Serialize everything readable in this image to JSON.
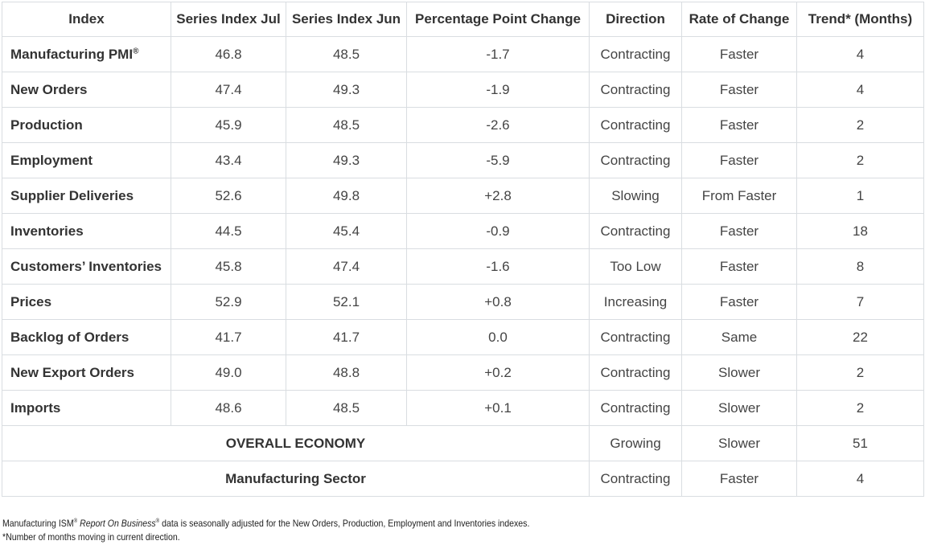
{
  "table": {
    "headers": [
      "Index",
      "Series Index Jul",
      "Series Index Jun",
      "Percentage Point Change",
      "Direction",
      "Rate of Change",
      "Trend* (Months)"
    ],
    "rows": [
      {
        "index": "Manufacturing PMI",
        "sup": "®",
        "jul": "46.8",
        "jun": "48.5",
        "change": "-1.7",
        "direction": "Contracting",
        "rate": "Faster",
        "trend": "4"
      },
      {
        "index": "New Orders",
        "jul": "47.4",
        "jun": "49.3",
        "change": "-1.9",
        "direction": "Contracting",
        "rate": "Faster",
        "trend": "4"
      },
      {
        "index": "Production",
        "jul": "45.9",
        "jun": "48.5",
        "change": "-2.6",
        "direction": "Contracting",
        "rate": "Faster",
        "trend": "2"
      },
      {
        "index": "Employment",
        "jul": "43.4",
        "jun": "49.3",
        "change": "-5.9",
        "direction": "Contracting",
        "rate": "Faster",
        "trend": "2"
      },
      {
        "index": "Supplier Deliveries",
        "jul": "52.6",
        "jun": "49.8",
        "change": "+2.8",
        "direction": "Slowing",
        "rate": "From Faster",
        "trend": "1"
      },
      {
        "index": "Inventories",
        "jul": "44.5",
        "jun": "45.4",
        "change": "-0.9",
        "direction": "Contracting",
        "rate": "Faster",
        "trend": "18"
      },
      {
        "index": "Customers’ Inventories",
        "jul": "45.8",
        "jun": "47.4",
        "change": "-1.6",
        "direction": "Too Low",
        "rate": "Faster",
        "trend": "8"
      },
      {
        "index": "Prices",
        "jul": "52.9",
        "jun": "52.1",
        "change": "+0.8",
        "direction": "Increasing",
        "rate": "Faster",
        "trend": "7"
      },
      {
        "index": "Backlog of Orders",
        "jul": "41.7",
        "jun": "41.7",
        "change": "0.0",
        "direction": "Contracting",
        "rate": "Same",
        "trend": "22"
      },
      {
        "index": "New Export Orders",
        "jul": "49.0",
        "jun": "48.8",
        "change": "+0.2",
        "direction": "Contracting",
        "rate": "Slower",
        "trend": "2"
      },
      {
        "index": "Imports",
        "jul": "48.6",
        "jun": "48.5",
        "change": "+0.1",
        "direction": "Contracting",
        "rate": "Slower",
        "trend": "2"
      }
    ],
    "summary_rows": [
      {
        "label": "OVERALL ECONOMY",
        "direction": "Growing",
        "rate": "Slower",
        "trend": "51"
      },
      {
        "label": "Manufacturing Sector",
        "direction": "Contracting",
        "rate": "Faster",
        "trend": "4"
      }
    ]
  },
  "footer": {
    "line1_a": "Manufacturing ISM",
    "line1_sup1": "®",
    "line1_b": "Report On Business",
    "line1_sup2": "®",
    "line1_c": " data is seasonally adjusted for the New Orders, Production, Employment and Inventories indexes.",
    "line2": "*Number of months moving in current direction."
  },
  "colors": {
    "border": "#d9dde1",
    "text": "#333333"
  }
}
